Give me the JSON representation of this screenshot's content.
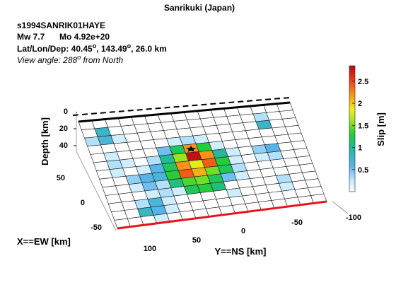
{
  "header": {
    "title": "Sanrikuki (Japan)",
    "event_id": "s1994SANRIK01HAYE",
    "magnitude": "Mw 7.7",
    "moment": "Mo 4.92e+20",
    "location_prefix": "Lat/Lon/Dep: 40.45",
    "location_mid": ", 143.49",
    "location_suffix": ", 26.0 km",
    "view_prefix": "View angle: 288",
    "view_suffix": " from North",
    "degree_symbol": "o"
  },
  "chart_data": {
    "type": "heatmap",
    "title": "Sanrikuki (Japan)",
    "xlabel": "X==EW [km]",
    "ylabel": "Y==NS [km]",
    "zlabel": "Depth [km]",
    "colorbar_label": "Slip [m]",
    "colorbar_ticks": [
      "0.5",
      "1",
      "1.5",
      "2",
      "2.5"
    ],
    "colorbar_range": [
      0,
      2.85
    ],
    "x_ticks": [
      "50",
      "0",
      "-50"
    ],
    "y_ticks": [
      "100",
      "50",
      "0",
      "-50",
      "-100"
    ],
    "z_ticks": [
      "0",
      "20",
      "40"
    ],
    "colormap": "jet",
    "grid_size": {
      "along_strike": 16,
      "down_dip": 13
    },
    "slip_grid_m": [
      [
        0,
        0,
        0,
        0,
        0,
        0,
        0,
        0,
        0,
        0,
        0,
        0,
        0,
        0,
        0,
        0
      ],
      [
        0,
        0.8,
        0,
        0,
        0,
        0,
        0,
        0,
        0,
        0,
        0,
        0,
        0,
        0.3,
        0,
        0
      ],
      [
        0.3,
        0.7,
        0.2,
        0,
        0,
        0,
        0,
        0,
        0,
        0,
        0,
        0,
        0,
        0.8,
        0,
        0
      ],
      [
        0,
        0,
        0,
        0,
        0,
        0,
        0.2,
        0.3,
        0.2,
        0,
        0,
        0,
        0,
        0,
        0,
        0
      ],
      [
        0,
        0.2,
        0,
        0,
        0,
        0.5,
        1.2,
        2.2,
        1.3,
        0.2,
        0,
        0,
        0,
        0,
        0,
        0
      ],
      [
        0,
        0.3,
        0.2,
        0,
        0.3,
        1.0,
        1.6,
        2.8,
        2.2,
        1.0,
        0.2,
        0,
        0.4,
        0.6,
        0,
        0
      ],
      [
        0,
        0.2,
        0,
        0.2,
        0.6,
        1.2,
        2.2,
        1.8,
        2.4,
        1.3,
        0.2,
        0,
        0.2,
        0.3,
        0,
        0
      ],
      [
        0,
        0,
        0.4,
        0.6,
        0.7,
        1.3,
        2.4,
        2.1,
        1.5,
        1.2,
        0.3,
        0,
        0,
        0,
        0,
        0
      ],
      [
        0,
        0,
        0.2,
        0.5,
        0.3,
        1.1,
        1.4,
        1.5,
        1.2,
        0.5,
        0.2,
        0,
        0,
        0,
        0,
        0
      ],
      [
        0,
        0,
        0,
        0.2,
        0.3,
        0.2,
        1.2,
        1.3,
        1.1,
        0,
        0,
        0,
        0,
        0.3,
        0,
        0
      ],
      [
        0,
        0,
        0.3,
        0.7,
        0.2,
        0,
        0,
        0,
        0,
        0.2,
        0,
        0,
        0,
        0.2,
        0,
        0
      ],
      [
        0,
        0,
        0.8,
        0.6,
        0.2,
        0,
        0,
        0,
        0,
        0,
        0,
        0,
        0,
        0,
        0,
        0
      ],
      [
        0,
        0,
        0,
        0.2,
        0,
        0,
        0,
        0,
        0,
        0,
        0,
        0,
        0,
        0,
        0,
        0
      ]
    ],
    "hypocenter": {
      "strike_index": 7.5,
      "dip_index": 4.6
    }
  }
}
